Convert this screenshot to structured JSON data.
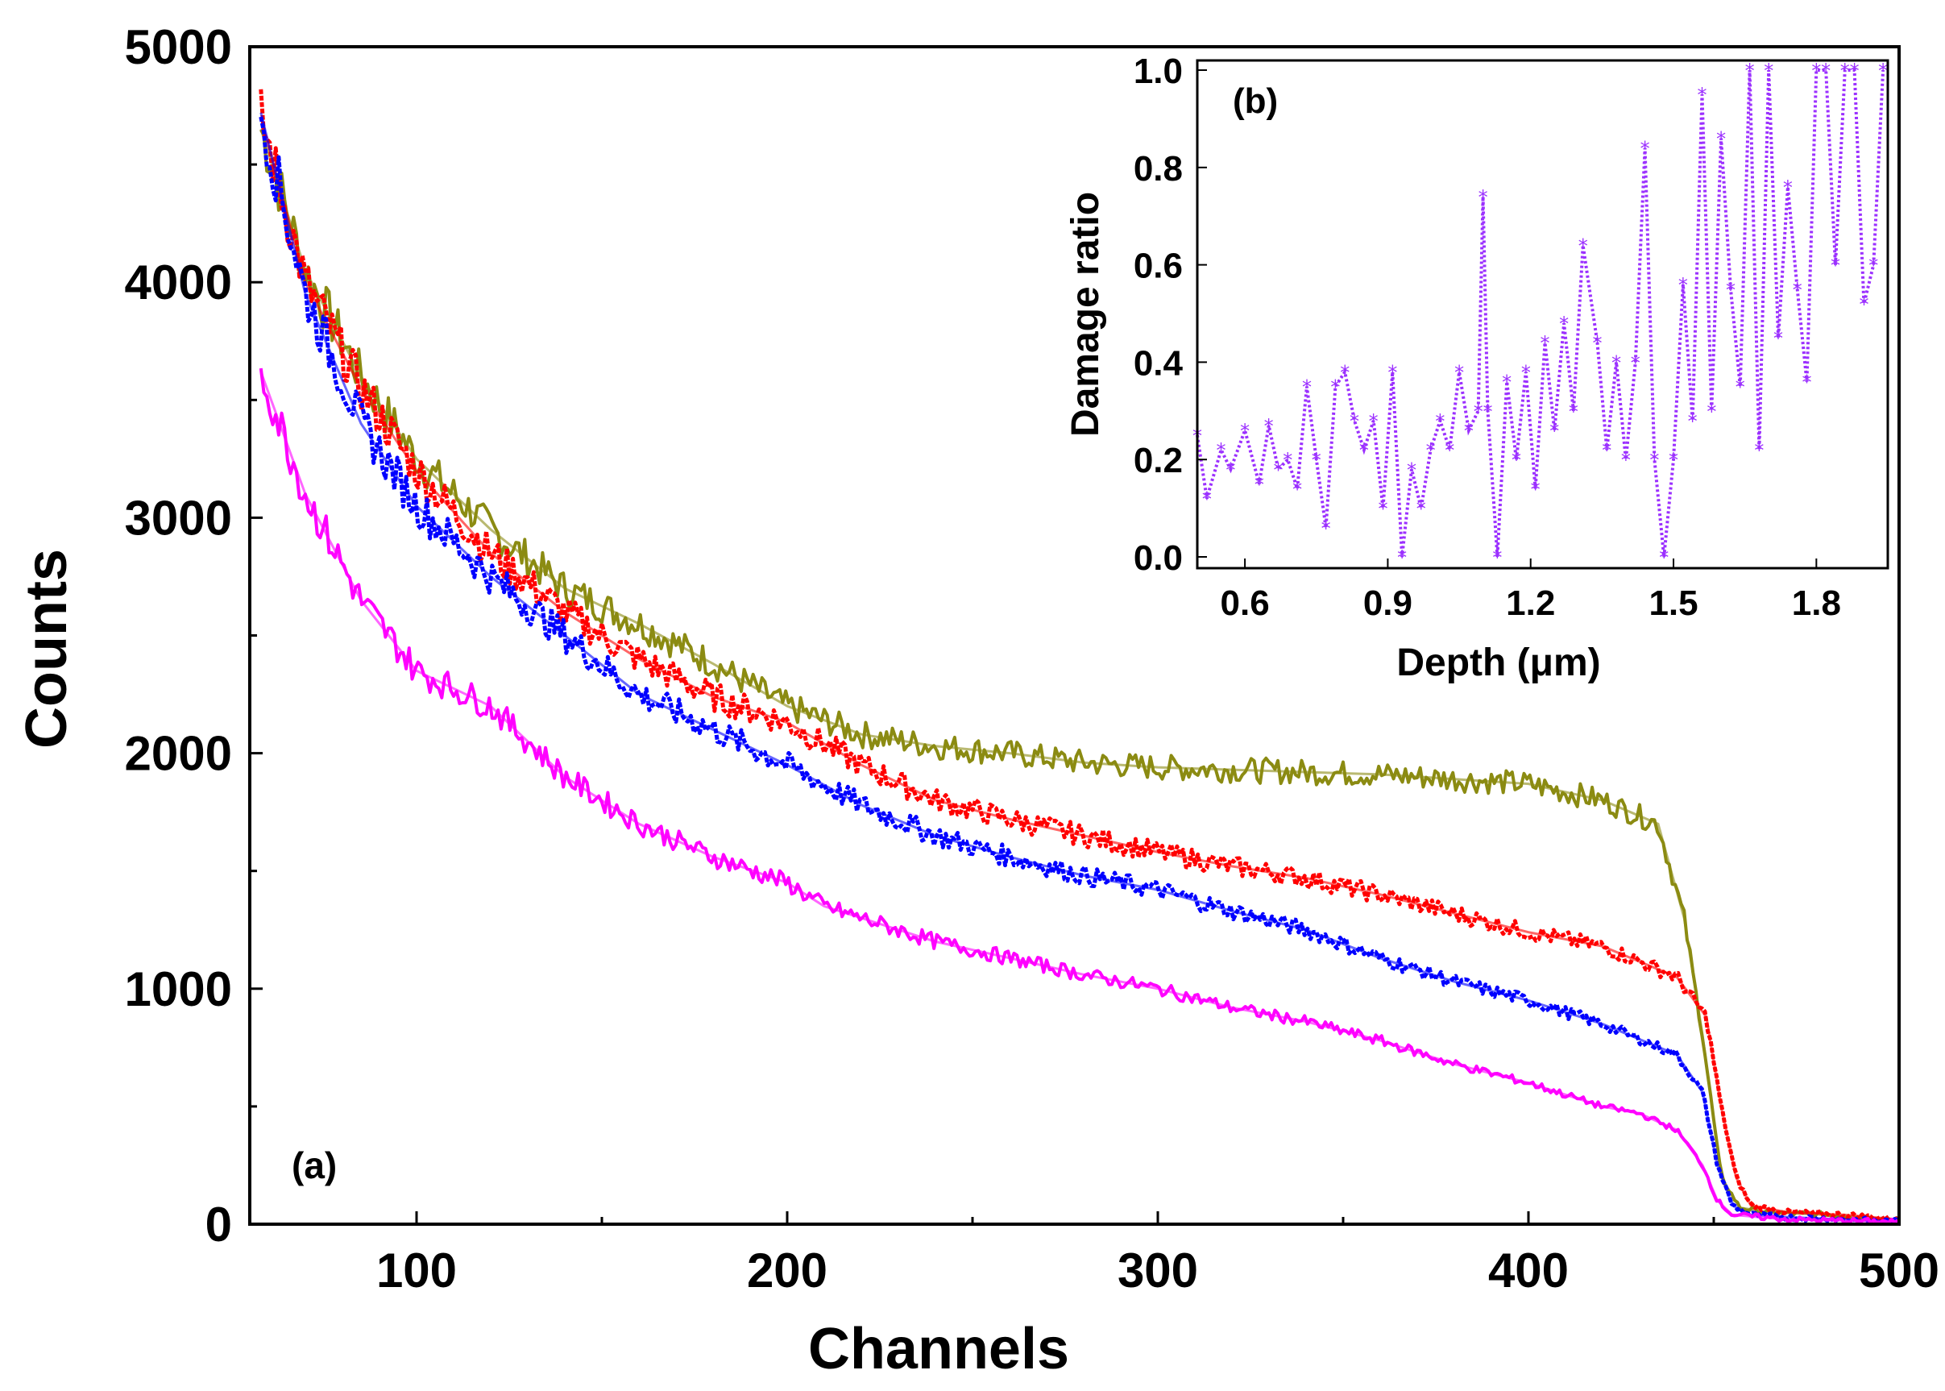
{
  "chart_data": [
    {
      "type": "line",
      "panel_label": "(a)",
      "xlabel": "Channels",
      "ylabel": "Counts",
      "xlim": [
        55,
        500
      ],
      "ylim": [
        0,
        5000
      ],
      "xticks": [
        100,
        200,
        300,
        400,
        500
      ],
      "yticks": [
        0,
        1000,
        2000,
        3000,
        4000,
        5000
      ],
      "xtick_labels": [
        "100",
        "200",
        "300",
        "400",
        "500"
      ],
      "ytick_labels": [
        "0",
        "1000",
        "2000",
        "3000",
        "4000",
        "5000"
      ],
      "series": [
        {
          "name": "olive",
          "color": "#8b8b12",
          "style": "line",
          "x": [
            58,
            70,
            85,
            100,
            120,
            140,
            160,
            180,
            200,
            220,
            240,
            260,
            280,
            300,
            320,
            340,
            360,
            380,
            400,
            420,
            435,
            442,
            447,
            452,
            457,
            465,
            480,
            500
          ],
          "y": [
            4650,
            4050,
            3600,
            3250,
            2950,
            2700,
            2550,
            2380,
            2200,
            2080,
            2030,
            2000,
            1960,
            1940,
            1930,
            1920,
            1910,
            1890,
            1870,
            1800,
            1700,
            1300,
            800,
            200,
            70,
            50,
            40,
            20
          ]
        },
        {
          "name": "red",
          "color": "#ff0000",
          "style": "dots",
          "x": [
            58,
            70,
            85,
            100,
            120,
            140,
            160,
            180,
            200,
            220,
            240,
            260,
            280,
            300,
            320,
            340,
            360,
            380,
            400,
            420,
            440,
            448,
            452,
            456,
            460,
            470,
            485,
            500
          ],
          "y": [
            4700,
            4000,
            3550,
            3200,
            2850,
            2600,
            2400,
            2240,
            2130,
            1950,
            1800,
            1720,
            1650,
            1580,
            1520,
            1470,
            1400,
            1320,
            1240,
            1180,
            1050,
            880,
            500,
            200,
            80,
            50,
            40,
            20
          ]
        },
        {
          "name": "blue",
          "color": "#0000ff",
          "style": "dots",
          "x": [
            58,
            70,
            85,
            100,
            120,
            140,
            160,
            180,
            200,
            220,
            240,
            260,
            280,
            300,
            320,
            340,
            360,
            380,
            400,
            420,
            440,
            447,
            451,
            455,
            460,
            470,
            485,
            500
          ],
          "y": [
            4720,
            3950,
            3400,
            3050,
            2750,
            2500,
            2250,
            2100,
            1950,
            1780,
            1650,
            1560,
            1480,
            1420,
            1330,
            1250,
            1130,
            1030,
            950,
            850,
            720,
            560,
            250,
            80,
            40,
            30,
            20,
            10
          ]
        },
        {
          "name": "magenta",
          "color": "#ff00ff",
          "style": "line",
          "x": [
            58,
            70,
            85,
            100,
            120,
            140,
            160,
            180,
            200,
            210,
            220,
            240,
            260,
            280,
            300,
            320,
            340,
            360,
            380,
            400,
            420,
            430,
            440,
            447,
            451,
            455,
            470,
            500
          ],
          "y": [
            3620,
            3100,
            2650,
            2350,
            2200,
            1900,
            1700,
            1560,
            1450,
            1350,
            1300,
            1200,
            1130,
            1060,
            1000,
            920,
            860,
            780,
            680,
            600,
            500,
            470,
            400,
            250,
            100,
            40,
            20,
            10
          ]
        }
      ]
    },
    {
      "type": "scatter",
      "panel_label": "(b)",
      "xlabel": "Depth (μm)",
      "ylabel": "Damage ratio",
      "xlim": [
        0.5,
        1.95
      ],
      "ylim": [
        0.0,
        1.0
      ],
      "xticks": [
        0.6,
        0.9,
        1.2,
        1.5,
        1.8
      ],
      "yticks": [
        0.0,
        0.2,
        0.4,
        0.6,
        0.8,
        1.0
      ],
      "xtick_labels": [
        "0.6",
        "0.9",
        "1.2",
        "1.5",
        "1.8"
      ],
      "ytick_labels": [
        "0.0",
        "0.2",
        "0.4",
        "0.6",
        "0.8",
        "1.0"
      ],
      "series": [
        {
          "name": "damage ratio",
          "color": "#9b30ff",
          "marker": "star",
          "x": [
            0.5,
            0.52,
            0.55,
            0.57,
            0.6,
            0.63,
            0.65,
            0.67,
            0.69,
            0.71,
            0.73,
            0.75,
            0.77,
            0.79,
            0.81,
            0.83,
            0.85,
            0.87,
            0.89,
            0.91,
            0.93,
            0.95,
            0.97,
            0.99,
            1.01,
            1.03,
            1.05,
            1.07,
            1.09,
            1.1,
            1.11,
            1.13,
            1.15,
            1.17,
            1.19,
            1.21,
            1.23,
            1.25,
            1.27,
            1.29,
            1.31,
            1.34,
            1.36,
            1.38,
            1.4,
            1.42,
            1.44,
            1.46,
            1.48,
            1.5,
            1.52,
            1.54,
            1.56,
            1.58,
            1.6,
            1.62,
            1.64,
            1.66,
            1.68,
            1.7,
            1.72,
            1.74,
            1.76,
            1.78,
            1.8,
            1.82,
            1.84,
            1.86,
            1.88,
            1.9,
            1.92,
            1.94
          ],
          "y": [
            0.25,
            0.12,
            0.22,
            0.18,
            0.26,
            0.15,
            0.27,
            0.18,
            0.2,
            0.14,
            0.35,
            0.2,
            0.06,
            0.35,
            0.38,
            0.28,
            0.22,
            0.28,
            0.1,
            0.38,
            0.0,
            0.18,
            0.1,
            0.22,
            0.28,
            0.22,
            0.38,
            0.26,
            0.3,
            0.74,
            0.3,
            0.0,
            0.36,
            0.2,
            0.38,
            0.14,
            0.44,
            0.26,
            0.48,
            0.3,
            0.64,
            0.44,
            0.22,
            0.4,
            0.2,
            0.4,
            0.84,
            0.2,
            0.0,
            0.2,
            0.56,
            0.28,
            0.95,
            0.3,
            0.86,
            0.55,
            0.35,
            1.0,
            0.22,
            1.0,
            0.45,
            0.76,
            0.55,
            0.36,
            1.0,
            1.0,
            0.6,
            1.0,
            1.0,
            0.52,
            0.6,
            1.0
          ]
        }
      ]
    }
  ]
}
